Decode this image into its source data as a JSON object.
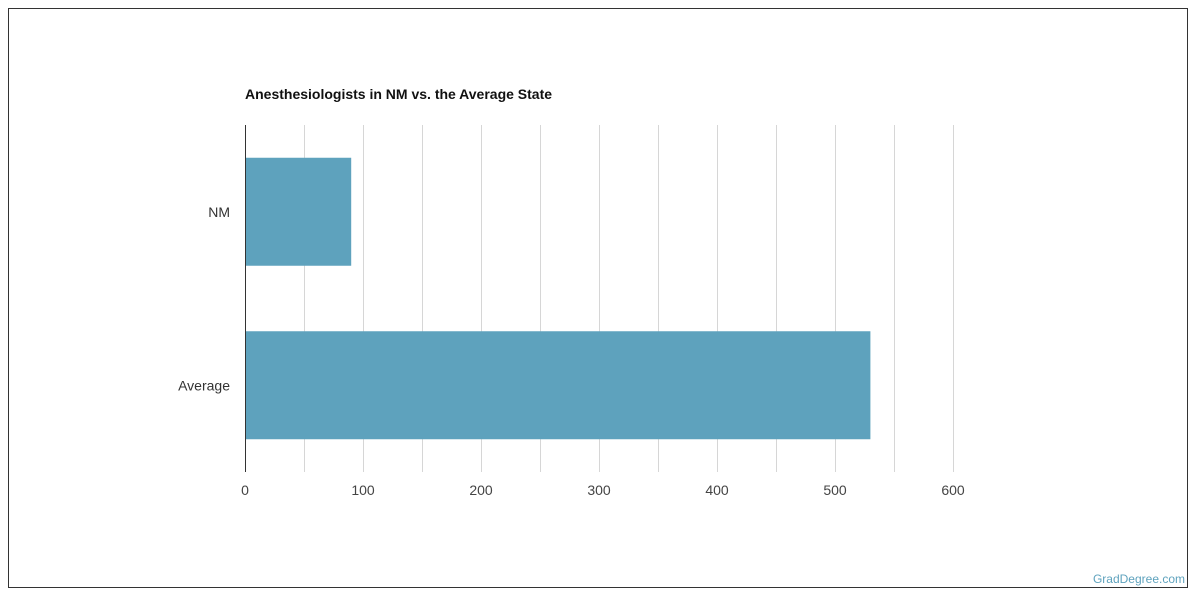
{
  "chart_data": {
    "type": "bar",
    "orientation": "horizontal",
    "title": "Anesthesiologists in NM vs. the Average State",
    "categories": [
      "NM",
      "Average"
    ],
    "values": [
      90,
      530
    ],
    "xlim": [
      0,
      600
    ],
    "xticks": [
      0,
      100,
      200,
      300,
      400,
      500,
      600
    ],
    "grid": true,
    "bar_color": "#5ea2bd"
  },
  "watermark": "GradDegree.com"
}
